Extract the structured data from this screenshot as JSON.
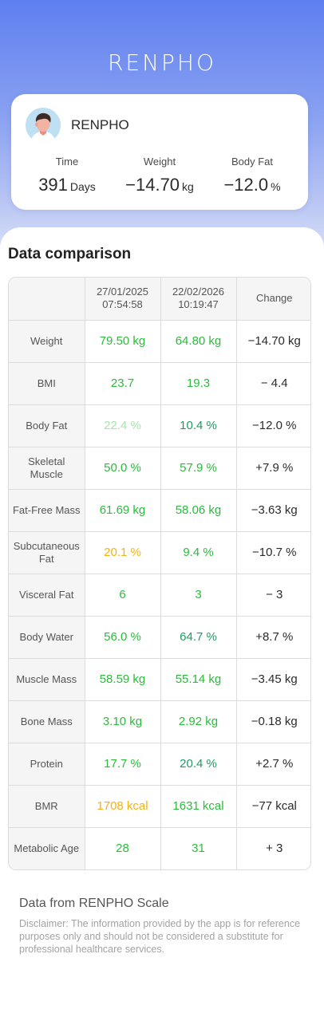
{
  "app": {
    "logo": "RENPHO"
  },
  "profile": {
    "name": "RENPHO",
    "stats": {
      "time": {
        "label": "Time",
        "value": "391",
        "unit": "Days"
      },
      "weight": {
        "label": "Weight",
        "value": "−14.70",
        "unit": "kg"
      },
      "body_fat": {
        "label": "Body Fat",
        "value": "−12.0",
        "unit": "%"
      }
    }
  },
  "comparison": {
    "title": "Data comparison",
    "columns": {
      "date1": "27/01/2025",
      "time1": "07:54:58",
      "date2": "22/02/2026",
      "time2": "10:19:47",
      "change": "Change"
    },
    "rows": [
      {
        "metric": "Weight",
        "v1": "79.50 kg",
        "v2": "64.80 kg",
        "change": "−14.70 kg",
        "c1": "#2bbb3c",
        "c2": "#2bbb3c"
      },
      {
        "metric": "BMI",
        "v1": "23.7",
        "v2": "19.3",
        "change": "− 4.4",
        "c1": "#2bbb3c",
        "c2": "#2bbb3c"
      },
      {
        "metric": "Body Fat",
        "v1": "22.4 %",
        "v2": "10.4 %",
        "change": "−12.0 %",
        "c1": "#a8e3b1",
        "c2": "#1f9b63"
      },
      {
        "metric": "Skeletal Muscle",
        "v1": "50.0 %",
        "v2": "57.9 %",
        "change": "+7.9 %",
        "c1": "#2bbb3c",
        "c2": "#2bbb3c"
      },
      {
        "metric": "Fat-Free Mass",
        "v1": "61.69 kg",
        "v2": "58.06 kg",
        "change": "−3.63 kg",
        "c1": "#2bbb3c",
        "c2": "#2bbb3c"
      },
      {
        "metric": "Subcutaneous Fat",
        "v1": "20.1 %",
        "v2": "9.4 %",
        "change": "−10.7 %",
        "c1": "#f3b212",
        "c2": "#2bbb3c"
      },
      {
        "metric": "Visceral Fat",
        "v1": "6",
        "v2": "3",
        "change": "− 3",
        "c1": "#2bbb3c",
        "c2": "#2bbb3c"
      },
      {
        "metric": "Body Water",
        "v1": "56.0 %",
        "v2": "64.7 %",
        "change": "+8.7 %",
        "c1": "#2bbb3c",
        "c2": "#1f9b63"
      },
      {
        "metric": "Muscle Mass",
        "v1": "58.59 kg",
        "v2": "55.14 kg",
        "change": "−3.45 kg",
        "c1": "#2bbb3c",
        "c2": "#2bbb3c"
      },
      {
        "metric": "Bone Mass",
        "v1": "3.10 kg",
        "v2": "2.92 kg",
        "change": "−0.18 kg",
        "c1": "#2bbb3c",
        "c2": "#2bbb3c"
      },
      {
        "metric": "Protein",
        "v1": "17.7 %",
        "v2": "20.4 %",
        "change": "+2.7 %",
        "c1": "#2bbb3c",
        "c2": "#1f9b63"
      },
      {
        "metric": "BMR",
        "v1": "1708 kcal",
        "v2": "1631 kcal",
        "change": "−77 kcal",
        "c1": "#f3b212",
        "c2": "#2bbb3c"
      },
      {
        "metric": "Metabolic Age",
        "v1": "28",
        "v2": "31",
        "change": "+ 3",
        "c1": "#2bbb3c",
        "c2": "#2bbb3c"
      }
    ]
  },
  "footer": {
    "title": "Data from RENPHO Scale",
    "disclaimer": "Disclaimer: The information provided by the app is for reference purposes only and should not be considered a substitute for professional healthcare services."
  },
  "colors": {
    "accent": "#5e7ff0",
    "good": "#2bbb3c",
    "excellent": "#1f9b63",
    "warning": "#f3b212",
    "light_good": "#a8e3b1"
  },
  "icons": {
    "avatar": "user-avatar-icon"
  }
}
